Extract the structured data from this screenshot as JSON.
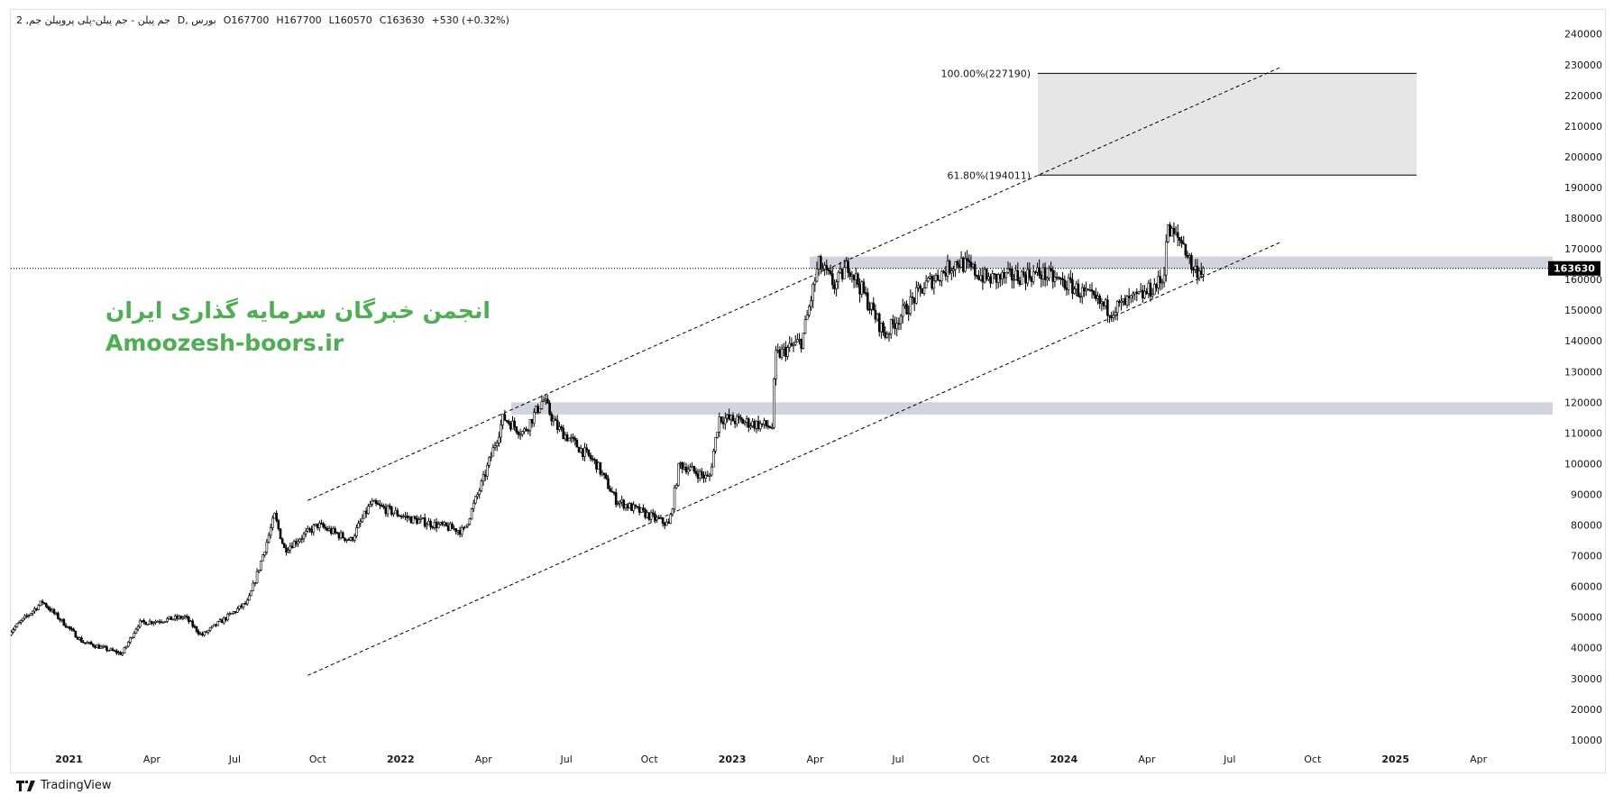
{
  "legend": {
    "symbol": "2 ,جم پیلن - جم پیلن-پلی پروپیلن جم",
    "interval": "D, بورس",
    "open": "O167700",
    "high": "H167700",
    "low": "L160570",
    "close": "C163630",
    "change": "+530 (+0.32%)"
  },
  "watermark": {
    "line1": "انجمن خبرگان سرمایه گذاری ایران",
    "line2": "Amoozesh-boors.ir"
  },
  "brand": {
    "name": "TradingView"
  },
  "colors": {
    "candle_up": "#ffffff",
    "candle_border": "#000000",
    "zone": "#d1d4dc",
    "fib_box": "#e6e6e6",
    "watermark": "#4caf50"
  },
  "chart_data": {
    "type": "candlestick",
    "title": "جم پیلن-پلی پروپیلن جم, D",
    "last_price": 163630,
    "last_price_label": "163630",
    "ylim": [
      10000,
      240000
    ],
    "yticks": [
      "240000",
      "230000",
      "220000",
      "210000",
      "200000",
      "190000",
      "180000",
      "170000",
      "160000",
      "150000",
      "140000",
      "130000",
      "120000",
      "110000",
      "100000",
      "90000",
      "80000",
      "70000",
      "60000",
      "50000",
      "40000",
      "30000",
      "20000",
      "10000"
    ],
    "xticks": [
      {
        "label": "2021",
        "t": 2021.0,
        "bold": true
      },
      {
        "label": "Apr",
        "t": 2021.25
      },
      {
        "label": "Jul",
        "t": 2021.5
      },
      {
        "label": "Oct",
        "t": 2021.75
      },
      {
        "label": "2022",
        "t": 2022.0,
        "bold": true
      },
      {
        "label": "Apr",
        "t": 2022.25
      },
      {
        "label": "Jul",
        "t": 2022.5
      },
      {
        "label": "Oct",
        "t": 2022.75
      },
      {
        "label": "2023",
        "t": 2023.0,
        "bold": true
      },
      {
        "label": "Apr",
        "t": 2023.25
      },
      {
        "label": "Jul",
        "t": 2023.5
      },
      {
        "label": "Oct",
        "t": 2023.75
      },
      {
        "label": "2024",
        "t": 2024.0,
        "bold": true
      },
      {
        "label": "Apr",
        "t": 2024.25
      },
      {
        "label": "Jul",
        "t": 2024.5
      },
      {
        "label": "Oct",
        "t": 2024.75
      },
      {
        "label": "2025",
        "t": 2025.0,
        "bold": true
      },
      {
        "label": "Apr",
        "t": 2025.25
      }
    ],
    "price_path": [
      [
        2020.82,
        45000
      ],
      [
        2020.92,
        55000
      ],
      [
        2021.04,
        42000
      ],
      [
        2021.16,
        38000
      ],
      [
        2021.21,
        48000
      ],
      [
        2021.35,
        50000
      ],
      [
        2021.4,
        44000
      ],
      [
        2021.54,
        55000
      ],
      [
        2021.57,
        65000
      ],
      [
        2021.62,
        83000
      ],
      [
        2021.65,
        72000
      ],
      [
        2021.75,
        80000
      ],
      [
        2021.85,
        75000
      ],
      [
        2021.91,
        87000
      ],
      [
        2022.03,
        82000
      ],
      [
        2022.19,
        78000
      ],
      [
        2022.25,
        95000
      ],
      [
        2022.31,
        115000
      ],
      [
        2022.37,
        110000
      ],
      [
        2022.43,
        121000
      ],
      [
        2022.47,
        112000
      ],
      [
        2022.59,
        100000
      ],
      [
        2022.65,
        88000
      ],
      [
        2022.81,
        80000
      ],
      [
        2022.84,
        100000
      ],
      [
        2022.93,
        95000
      ],
      [
        2022.96,
        115000
      ],
      [
        2023.12,
        112000
      ],
      [
        2023.13,
        135000
      ],
      [
        2023.21,
        140000
      ],
      [
        2023.26,
        165000
      ],
      [
        2023.31,
        158000
      ],
      [
        2023.35,
        165000
      ],
      [
        2023.46,
        142000
      ],
      [
        2023.58,
        158000
      ],
      [
        2023.68,
        166000
      ],
      [
        2023.77,
        160000
      ],
      [
        2023.93,
        162000
      ],
      [
        2024.02,
        158000
      ],
      [
        2024.14,
        150000
      ],
      [
        2024.24,
        155000
      ],
      [
        2024.3,
        160000
      ],
      [
        2024.31,
        176000
      ],
      [
        2024.36,
        172000
      ],
      [
        2024.39,
        163000
      ],
      [
        2024.42,
        163630
      ]
    ],
    "fibonacci": [
      {
        "label": "100.00%(227190)",
        "price": 227190
      },
      {
        "label": "61.80%(194011)",
        "price": 194011
      }
    ],
    "zones": [
      {
        "from": 116000,
        "to": 120000
      },
      {
        "from": 163500,
        "to": 167500
      }
    ],
    "channel": {
      "upper": [
        [
          2021.72,
          88000
        ],
        [
          2024.65,
          229000
        ]
      ],
      "lower": [
        [
          2021.72,
          31000
        ],
        [
          2024.65,
          172000
        ]
      ]
    }
  }
}
